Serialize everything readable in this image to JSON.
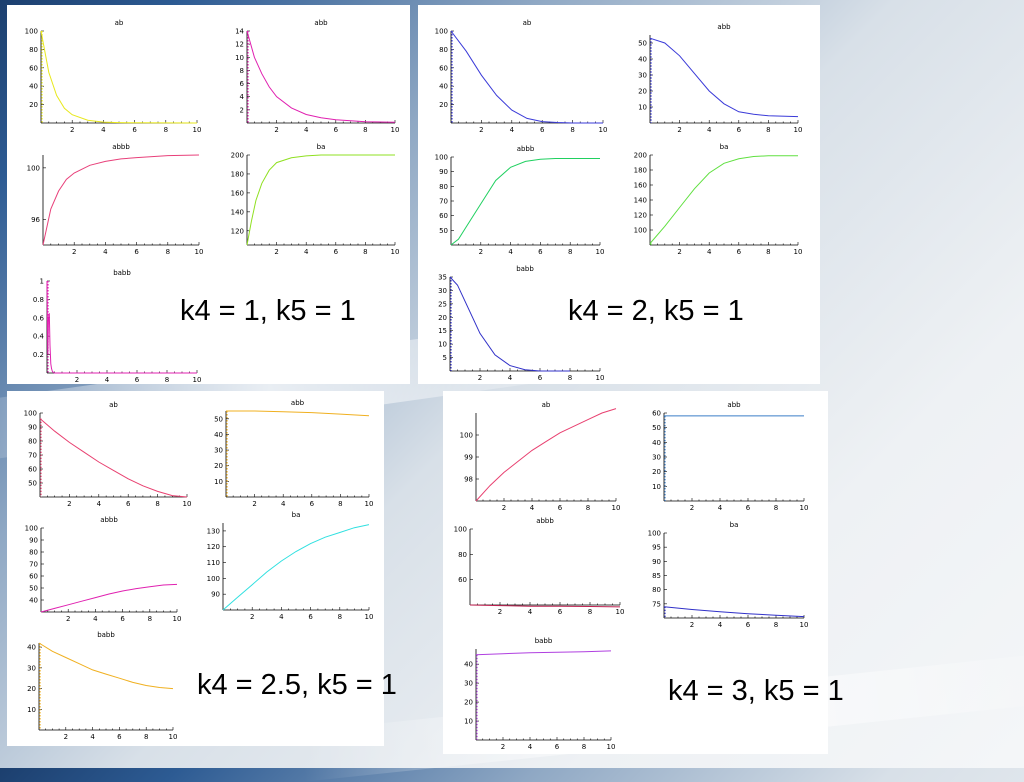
{
  "colors": {
    "yellow": "#e8e81c",
    "magenta": "#e020b0",
    "pink": "#e8407a",
    "yellowgreen": "#8fe020",
    "blue": "#3a3ad8",
    "green": "#20d060",
    "lime": "#60e040",
    "navyblue": "#3030c8",
    "red": "#e84070",
    "orange": "#f0b020",
    "cyan": "#30e0e0",
    "steel": "#3a7ec8",
    "purple": "#b040e0",
    "darkred": "#c02050"
  },
  "panels": [
    {
      "caption": "k4 = 1, k5 = 1"
    },
    {
      "caption": "k4 = 2, k5 = 1"
    },
    {
      "caption": "k4 = 2.5, k5 = 1"
    },
    {
      "caption": "k4 = 3, k5 = 1"
    }
  ],
  "chart_data": [
    {
      "panel": 0,
      "type": "line",
      "title": "ab",
      "xlim": [
        0,
        10
      ],
      "ylim": [
        0,
        100
      ],
      "xticks": [
        2,
        4,
        6,
        8,
        10
      ],
      "yticks": [
        20,
        40,
        60,
        80,
        100
      ],
      "color": "yellow",
      "series": [
        {
          "x": [
            0,
            0.5,
            1,
            1.5,
            2,
            3,
            4,
            5,
            6,
            8,
            10
          ],
          "values": [
            100,
            55,
            30,
            16,
            9,
            3,
            1,
            0.4,
            0.2,
            0.1,
            0
          ]
        }
      ]
    },
    {
      "panel": 0,
      "type": "line",
      "title": "abb",
      "xlim": [
        0,
        10
      ],
      "ylim": [
        0,
        14
      ],
      "xticks": [
        2,
        4,
        6,
        8,
        10
      ],
      "yticks": [
        2,
        4,
        6,
        8,
        10,
        12,
        14
      ],
      "color": "magenta",
      "series": [
        {
          "x": [
            0,
            0.5,
            1,
            1.5,
            2,
            3,
            4,
            5,
            6,
            8,
            10
          ],
          "values": [
            14,
            10,
            7.5,
            5.5,
            4,
            2.3,
            1.3,
            0.8,
            0.5,
            0.2,
            0.1
          ]
        }
      ]
    },
    {
      "panel": 0,
      "type": "line",
      "title": "abbb",
      "xlim": [
        0,
        10
      ],
      "ylim": [
        94,
        101
      ],
      "xticks": [
        2,
        4,
        6,
        8,
        10
      ],
      "yticks": [
        96,
        100
      ],
      "color": "pink",
      "series": [
        {
          "x": [
            0,
            0.5,
            1,
            1.5,
            2,
            3,
            4,
            5,
            6,
            8,
            10
          ],
          "values": [
            94,
            96.8,
            98.2,
            99.1,
            99.6,
            100.2,
            100.5,
            100.7,
            100.8,
            100.95,
            101
          ]
        }
      ]
    },
    {
      "panel": 0,
      "type": "line",
      "title": "ba",
      "xlim": [
        0,
        10
      ],
      "ylim": [
        105,
        200
      ],
      "xticks": [
        2,
        4,
        6,
        8,
        10
      ],
      "yticks": [
        120,
        140,
        160,
        180,
        200
      ],
      "color": "yellowgreen",
      "series": [
        {
          "x": [
            0,
            0.3,
            0.6,
            1,
            1.5,
            2,
            3,
            4,
            5,
            6,
            8,
            10
          ],
          "values": [
            105,
            130,
            152,
            170,
            184,
            192,
            197,
            199,
            200,
            200,
            200,
            200
          ]
        }
      ]
    },
    {
      "panel": 0,
      "type": "line",
      "title": "babb",
      "xlim": [
        0,
        10
      ],
      "ylim": [
        0,
        1
      ],
      "xticks": [
        2,
        4,
        6,
        8,
        10
      ],
      "yticks": [
        0.2,
        0.4,
        0.6,
        0.8,
        1
      ],
      "color": "magenta",
      "series": [
        {
          "x": [
            0,
            0.05,
            0.1,
            0.15,
            0.2,
            0.25,
            0.3,
            0.35,
            0.4,
            0.5,
            1,
            10
          ],
          "values": [
            1,
            0.2,
            0.6,
            0.65,
            0.3,
            0.1,
            0.05,
            0.02,
            0.01,
            0,
            0,
            0
          ]
        }
      ]
    },
    {
      "panel": 1,
      "type": "line",
      "title": "ab",
      "xlim": [
        0,
        10
      ],
      "ylim": [
        0,
        100
      ],
      "xticks": [
        2,
        4,
        6,
        8,
        10
      ],
      "yticks": [
        20,
        40,
        60,
        80,
        100
      ],
      "color": "blue",
      "series": [
        {
          "x": [
            0,
            1,
            2,
            3,
            4,
            5,
            6,
            7,
            8,
            10
          ],
          "values": [
            100,
            78,
            52,
            30,
            14,
            5,
            1.5,
            0.5,
            0,
            0
          ]
        }
      ]
    },
    {
      "panel": 1,
      "type": "line",
      "title": "abb",
      "xlim": [
        0,
        10
      ],
      "ylim": [
        0,
        55
      ],
      "xticks": [
        2,
        4,
        6,
        8,
        10
      ],
      "yticks": [
        10,
        20,
        30,
        40,
        50
      ],
      "color": "blue",
      "series": [
        {
          "x": [
            0,
            1,
            2,
            3,
            4,
            5,
            6,
            7,
            8,
            10
          ],
          "values": [
            53,
            50,
            42,
            31,
            20,
            12,
            7,
            5.5,
            4.5,
            4
          ]
        }
      ]
    },
    {
      "panel": 1,
      "type": "line",
      "title": "abbb",
      "xlim": [
        0,
        10
      ],
      "ylim": [
        40,
        100
      ],
      "xticks": [
        2,
        4,
        6,
        8,
        10
      ],
      "yticks": [
        50,
        60,
        70,
        80,
        90,
        100
      ],
      "color": "green",
      "series": [
        {
          "x": [
            0,
            0.5,
            1,
            2,
            3,
            4,
            5,
            6,
            7,
            8,
            10
          ],
          "values": [
            40,
            44,
            52,
            68,
            84,
            93,
            97,
            98.5,
            99,
            99,
            99
          ]
        }
      ]
    },
    {
      "panel": 1,
      "type": "line",
      "title": "ba",
      "xlim": [
        0,
        10
      ],
      "ylim": [
        80,
        200
      ],
      "xticks": [
        2,
        4,
        6,
        8,
        10
      ],
      "yticks": [
        100,
        120,
        140,
        160,
        180,
        200
      ],
      "color": "lime",
      "series": [
        {
          "x": [
            0,
            1,
            2,
            3,
            4,
            5,
            6,
            7,
            8,
            10
          ],
          "values": [
            82,
            105,
            130,
            155,
            176,
            189,
            195,
            198,
            199,
            199
          ]
        }
      ]
    },
    {
      "panel": 1,
      "type": "line",
      "title": "babb",
      "xlim": [
        0,
        10
      ],
      "ylim": [
        0,
        35
      ],
      "xticks": [
        2,
        4,
        6,
        8,
        10
      ],
      "yticks": [
        5,
        10,
        15,
        20,
        25,
        30,
        35
      ],
      "color": "navyblue",
      "series": [
        {
          "x": [
            0,
            0.5,
            1,
            2,
            3,
            4,
            5,
            6,
            7,
            8
          ],
          "values": [
            35,
            32,
            26,
            14,
            6,
            2,
            0.5,
            0,
            0,
            0
          ]
        }
      ]
    },
    {
      "panel": 2,
      "type": "line",
      "title": "ab",
      "xlim": [
        0,
        10
      ],
      "ylim": [
        40,
        100
      ],
      "xticks": [
        2,
        4,
        6,
        8,
        10
      ],
      "yticks": [
        50,
        60,
        70,
        80,
        90,
        100
      ],
      "color": "red",
      "series": [
        {
          "x": [
            0,
            1,
            2,
            3,
            4,
            5,
            6,
            7,
            8,
            9,
            10
          ],
          "values": [
            96,
            87,
            79,
            72,
            65,
            59,
            53,
            48,
            44,
            41,
            40
          ]
        }
      ]
    },
    {
      "panel": 2,
      "type": "line",
      "title": "abb",
      "xlim": [
        0,
        10
      ],
      "ylim": [
        0,
        55
      ],
      "xticks": [
        2,
        4,
        6,
        8,
        10
      ],
      "yticks": [
        10,
        20,
        30,
        40,
        50
      ],
      "color": "orange",
      "series": [
        {
          "x": [
            0,
            1,
            2,
            4,
            6,
            8,
            10
          ],
          "values": [
            55,
            55,
            55,
            54.5,
            54,
            53,
            52
          ]
        }
      ]
    },
    {
      "panel": 2,
      "type": "line",
      "title": "abbb",
      "xlim": [
        0,
        10
      ],
      "ylim": [
        30,
        100
      ],
      "xticks": [
        2,
        4,
        6,
        8,
        10
      ],
      "yticks": [
        40,
        50,
        60,
        70,
        80,
        90,
        100
      ],
      "color": "magenta",
      "series": [
        {
          "x": [
            0,
            1,
            2,
            3,
            4,
            5,
            6,
            7,
            8,
            9,
            10
          ],
          "values": [
            30,
            33,
            36,
            39,
            42,
            45,
            47.5,
            49.5,
            51,
            52.5,
            53
          ]
        }
      ]
    },
    {
      "panel": 2,
      "type": "line",
      "title": "ba",
      "xlim": [
        0,
        10
      ],
      "ylim": [
        80,
        135
      ],
      "xticks": [
        2,
        4,
        6,
        8,
        10
      ],
      "yticks": [
        90,
        100,
        110,
        120,
        130
      ],
      "color": "cyan",
      "series": [
        {
          "x": [
            0,
            1,
            2,
            3,
            4,
            5,
            6,
            7,
            8,
            9,
            10
          ],
          "values": [
            80,
            88,
            96,
            104,
            111,
            117,
            122,
            126,
            129,
            132,
            134
          ]
        }
      ]
    },
    {
      "panel": 2,
      "type": "line",
      "title": "babb",
      "xlim": [
        0,
        10
      ],
      "ylim": [
        0,
        42
      ],
      "xticks": [
        2,
        4,
        6,
        8,
        10
      ],
      "yticks": [
        10,
        20,
        30,
        40
      ],
      "color": "orange",
      "series": [
        {
          "x": [
            0,
            1,
            2,
            3,
            4,
            5,
            6,
            7,
            8,
            9,
            10
          ],
          "values": [
            42,
            38,
            35,
            32,
            29,
            27,
            25,
            23,
            21.5,
            20.5,
            20
          ]
        }
      ]
    },
    {
      "panel": 3,
      "type": "line",
      "title": "ab",
      "xlim": [
        0,
        10
      ],
      "ylim": [
        97,
        101
      ],
      "xticks": [
        2,
        4,
        6,
        8,
        10
      ],
      "yticks": [
        98,
        99,
        100
      ],
      "color": "red",
      "series": [
        {
          "x": [
            0,
            1,
            2,
            3,
            4,
            5,
            6,
            7,
            8,
            9,
            10
          ],
          "values": [
            97,
            97.7,
            98.3,
            98.8,
            99.3,
            99.7,
            100.1,
            100.4,
            100.7,
            101,
            101.2
          ]
        }
      ]
    },
    {
      "panel": 3,
      "type": "line",
      "title": "abb",
      "xlim": [
        0,
        10
      ],
      "ylim": [
        0,
        60
      ],
      "xticks": [
        2,
        4,
        6,
        8,
        10
      ],
      "yticks": [
        10,
        20,
        30,
        40,
        50,
        60
      ],
      "color": "steel",
      "series": [
        {
          "x": [
            0,
            2,
            4,
            6,
            8,
            10
          ],
          "values": [
            58,
            58,
            58,
            58,
            58,
            58
          ]
        }
      ]
    },
    {
      "panel": 3,
      "type": "line",
      "title": "abbb",
      "xlim": [
        0,
        10
      ],
      "ylim": [
        40,
        100
      ],
      "xticks": [
        2,
        4,
        6,
        8,
        10
      ],
      "yticks": [
        60,
        80,
        100
      ],
      "color": "darkred",
      "series": [
        {
          "x": [
            0,
            2,
            4,
            6,
            8,
            10
          ],
          "values": [
            40,
            39.5,
            39,
            39,
            38.8,
            38.5
          ]
        }
      ]
    },
    {
      "panel": 3,
      "type": "line",
      "title": "ba",
      "xlim": [
        0,
        10
      ],
      "ylim": [
        70,
        100
      ],
      "xticks": [
        2,
        4,
        6,
        8,
        10
      ],
      "yticks": [
        75,
        80,
        85,
        90,
        95,
        100
      ],
      "color": "navyblue",
      "series": [
        {
          "x": [
            0,
            2,
            4,
            6,
            8,
            10
          ],
          "values": [
            74,
            73,
            72.2,
            71.5,
            71,
            70.5
          ]
        }
      ]
    },
    {
      "panel": 3,
      "type": "line",
      "title": "babb",
      "xlim": [
        0,
        10
      ],
      "ylim": [
        0,
        48
      ],
      "xticks": [
        2,
        4,
        6,
        8,
        10
      ],
      "yticks": [
        10,
        20,
        30,
        40
      ],
      "color": "purple",
      "series": [
        {
          "x": [
            0,
            2,
            4,
            6,
            8,
            10
          ],
          "values": [
            45,
            45.5,
            46,
            46.3,
            46.6,
            47
          ]
        }
      ]
    }
  ]
}
